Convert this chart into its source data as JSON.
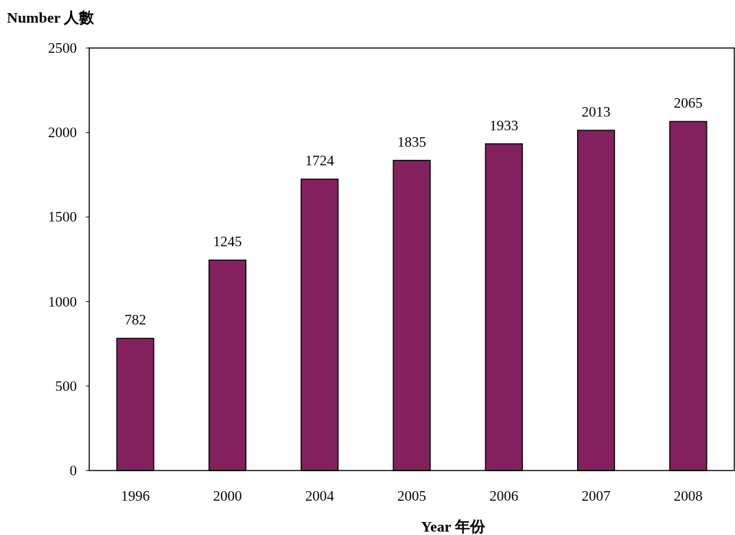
{
  "chart_data": {
    "type": "bar",
    "ylabel": "Number  人數",
    "xlabel": "Year  年份",
    "categories": [
      "1996",
      "2000",
      "2004",
      "2005",
      "2006",
      "2007",
      "2008"
    ],
    "values": [
      782,
      1245,
      1724,
      1835,
      1933,
      2013,
      2065
    ],
    "color": "#82215e",
    "ylim": [
      0,
      2500
    ],
    "yticks": [
      0,
      500,
      1000,
      1500,
      2000,
      2500
    ],
    "data_labels": true,
    "grid": false
  }
}
